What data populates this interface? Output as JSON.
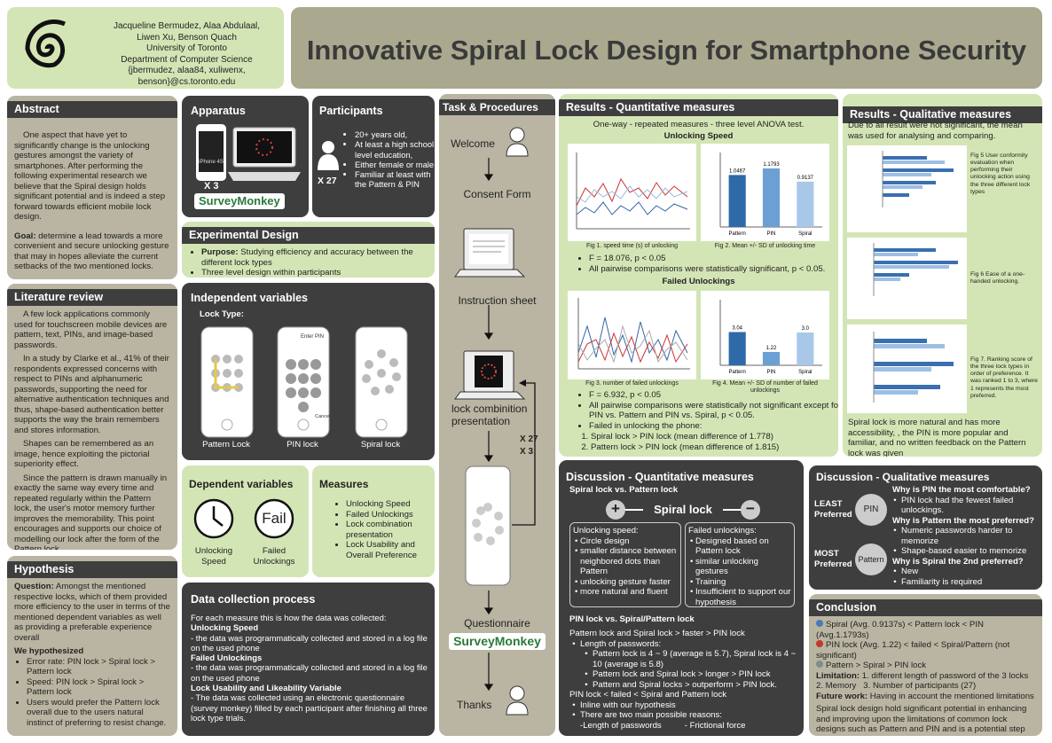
{
  "header": {
    "authors": "Jacqueline Bermudez, Alaa Abdulaal,",
    "authors2": "Liwen Xu, Benson Quach",
    "university": "University of Toronto",
    "department": "Department of Computer Science",
    "emails": "{jbermudez, alaa84, xuliwenx, benson}@cs.toronto.edu",
    "title": "Innovative Spiral Lock Design for Smartphone Security"
  },
  "abstract": {
    "title": "Abstract",
    "text": "One aspect that have yet to significantly change is the unlocking gestures amongst the variety of smartphones. After performing the following experimental research we believe that the Spiral design holds significant potential and is indeed a step forward towards efficient mobile lock design.",
    "goal_label": "Goal:",
    "goal": "determine a lead towards a more convenient and secure unlocking gesture that may in hopes alleviate the current setbacks of the two mentioned locks."
  },
  "literature": {
    "title": "Literature review",
    "paragraphs": [
      "A few lock applications commonly used for touchscreen mobile devices are pattern, text, PINs, and image-based passwords.",
      "In a study by Clarke et al., 41% of their respondents expressed concerns with respect to PINs and alphanumeric passwords, supporting the need for alternative authentication techniques and thus, shape-based authentication better supports the way the brain remembers and stores information.",
      "Shapes can be remembered as an image, hence exploiting the pictorial superiority effect.",
      "Since the pattern is drawn manually in exactly the same way every time and repeated regularly within the Pattern lock, the user's motor memory further improves the memorability. This point encourages and supports our choice of modelling our lock after the form of the Pattern lock."
    ]
  },
  "hypothesis": {
    "title": "Hypothesis",
    "question_label": "Question:",
    "question": "Amongst the mentioned respective locks, which of them provided more efficiency to the user in terms of the mentioned dependent variables as well as providing a preferable experience overall",
    "subheading": "We hypothesized",
    "items": [
      "Error rate: PIN lock > Spiral lock > Pattern lock",
      "Speed: PIN lock > Spiral lock > Pattern lock",
      "Users would prefer the Pattern lock overall due to the users natural instinct of preferring to resist change."
    ]
  },
  "apparatus": {
    "title": "Apparatus",
    "phone_label": "iPhone 4S",
    "count": "X 3",
    "logo": "SurveyMonkey"
  },
  "participants": {
    "title": "Participants",
    "items": [
      "20+ years old,",
      "At least a high school level education,",
      "Either female or male",
      "Familiar at least with the Pattern & PIN"
    ],
    "count": "X 27"
  },
  "design": {
    "title": "Experimental Design",
    "purpose_label": "Purpose:",
    "purpose": "Studying efficiency and accuracy between the different lock types",
    "item2": "Three level design within participants"
  },
  "independent": {
    "title": "Independent variables",
    "subtitle": "Lock Type:",
    "locks": [
      "Pattern Lock",
      "PIN lock",
      "Spiral lock"
    ],
    "pin_screen": "Enter PIN",
    "pin_cancel": "Cancel"
  },
  "dependent": {
    "title": "Dependent variables",
    "icon_text": "Fail",
    "items": [
      "Unlocking Speed",
      "Failed Unlockings"
    ]
  },
  "measures": {
    "title": "Measures",
    "items": [
      "Unlocking Speed",
      "Failed Unlockings",
      "Lock combination presentation",
      "Lock Usability and Overall Preference"
    ]
  },
  "collection": {
    "title": "Data collection process",
    "intro": "For each measure this is how the data was collected:",
    "measures": [
      {
        "heading": "Unlocking Speed",
        "text": "- the data was programmatically collected and stored in a log file on the used phone"
      },
      {
        "heading": "Failed Unlockings",
        "text": "- the data was programmatically collected and stored in a log file on the used phone"
      },
      {
        "heading": "Lock Usability and Likeability Variable",
        "text": "- The data was collected using an electronic questionnaire (survey monkey) filled by each participant after finishing all three lock type trials."
      }
    ]
  },
  "task": {
    "title": "Task & Procedures",
    "steps": [
      "Welcome",
      "Consent Form",
      "Instruction sheet",
      "lock combinition presentation",
      "Questionnaire",
      "Thanks"
    ],
    "repeat": "X 27",
    "repeat2": "X 3",
    "logo": "SurveyMonkey"
  },
  "results_quant": {
    "title": "Results - Quantitative measures",
    "subtitle": "One-way - repeated measures - three level ANOVA test.",
    "speed_heading": "Unlocking Speed",
    "fig1": "Fig 1. speed time (s) of unlocking",
    "fig2": "Fig 2. Mean +/- SD of unlocking time",
    "speed_stats": [
      "F = 18.076, p < 0.05",
      "All pairwise comparisons were statistically significant, p < 0.05."
    ],
    "failed_heading": "Failed Unlockings",
    "fig3": "Fig 3. number of failed unlockings",
    "fig4": "Fig 4. Mean +/- SD of number of failed unlockings",
    "failed_stats": [
      "F = 6.932, p < 0.05",
      "All pairwise comparisons were statistically not significant except for PIN vs. Pattern and PIN vs. Spiral, p < 0.05.",
      "Failed in unlocking the phone:"
    ],
    "failed_list": [
      "Spiral lock > PIN lock (mean difference of 1.778)",
      "Pattern lock > PIN lock (mean difference of 1.815)"
    ]
  },
  "figures": {
    "fig2": {
      "type": "bar",
      "categories": [
        "Pattern",
        "PIN",
        "Spiral"
      ],
      "values": [
        1.0467,
        1.1793,
        0.9137
      ],
      "colors": [
        "#2e6aa8",
        "#6c9fd4",
        "#a9c8e8"
      ],
      "ylim": [
        0,
        1.5
      ]
    },
    "fig4": {
      "type": "bar",
      "categories": [
        "Pattern",
        "PIN",
        "Spiral"
      ],
      "values": [
        3.04,
        1.22,
        3.0
      ],
      "value_labels": [
        "3.04",
        "1.22",
        "3.0"
      ],
      "colors": [
        "#2e6aa8",
        "#6c9fd4",
        "#a9c8e8"
      ],
      "ylim": [
        0,
        6
      ]
    }
  },
  "results_qual": {
    "title": "Results - Qualitative measures",
    "intro": "Due to all result were not significant, the mean was used for analysing and comparing.",
    "fig5": "Fig 5 User conformity evaluation when performing their unlocking action using the three different lock types",
    "fig6": "Fig 6 Ease of a one-handed unlocking.",
    "fig7": "Fig 7. Ranking score of the three lock types in order of preference. It was ranked 1 to 3, where 1 represents the most preferred.",
    "summary": "Spiral lock is more natural and has more accessibility, , the PIN is more popular and familiar, and no written feedback on the Pattern lock was given"
  },
  "discussion_quant": {
    "title": "Discussion - Quantitative measures",
    "compare": "Spiral lock vs. Pattern lock",
    "plus": "+",
    "center": "Spiral lock",
    "minus": "−",
    "speed_heading": "Unlocking speed:",
    "speed_items": [
      "Circle design",
      "smaller distance between neighbored dots than Pattern",
      "unlocking gesture faster",
      "more natural and fluent"
    ],
    "failed_heading": "Failed unlockings:",
    "failed_items": [
      "Designed based on Pattern lock",
      "similar unlocking gestures",
      "Training",
      "Insufficient to support our hypothesis"
    ],
    "compare2": "PIN lock vs. Spiral/Pattern lock",
    "line": "Pattern lock and Spiral lock > faster > PIN lock",
    "length_heading": "Length of passwords:",
    "length_items": [
      "Pattern lock is 4 ~ 9 (average is 5.7), Spiral lock is 4 ~ 10 (average is 5.8)",
      "Pattern lock and Spiral lock > longer > PIN lock",
      "Pattern and Spiral locks > outperform > PIN lock."
    ],
    "failed_line": "PIN lock < failed < Spiral and Pattern lock",
    "items2": [
      "Inline with our hypothesis",
      "There are two main possible reasons:"
    ],
    "reason1": "-Length of passwords",
    "reason2": "- Frictional force"
  },
  "discussion_qual": {
    "title": "Discussion - Qualitative measures",
    "least": "LEAST Preferred",
    "most": "MOST Preferred",
    "least_lock": "PIN",
    "most_lock": "Pattern",
    "q1": "Why is PIN the most comfortable?",
    "a1": [
      "PIN lock had the fewest failed unlockings."
    ],
    "q2": "Why is Pattern the most preferred?",
    "a2": [
      "Numeric passwords harder to memorize",
      "Shape-based easier to memorize"
    ],
    "q3": "Why is Spiral the 2nd preferred?",
    "a3": [
      "New",
      "Familiarity is required"
    ]
  },
  "conclusion": {
    "title": "Conclusion",
    "lines": [
      "Spiral (Avg. 0.9137s) < Pattern lock < PIN (Avg.1.1793s)",
      "PIN lock (Avg. 1.22) < failed < Spiral/Pattern (not significant)",
      "Pattern > Spiral > PIN lock"
    ],
    "limitation_label": "Limitation:",
    "limitation": "1. different length of password of the 3 locks",
    "limitation2": "2. Memory   3. Number of participants (27)",
    "future_label": "Future work:",
    "future": "Having in account the mentioned limitations",
    "closing": "Spiral lock design hold significant potential in enhancing and improving upon the limitations of common lock designs such as Pattern and PIN and is a potential step forward in regards to speed and error rate efficiency."
  }
}
